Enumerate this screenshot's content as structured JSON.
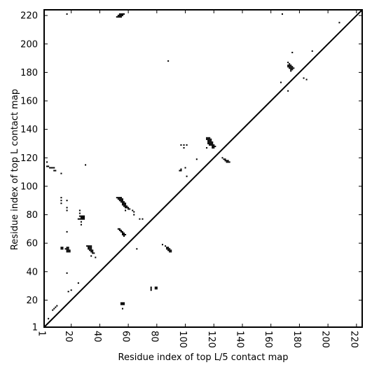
{
  "chart_data": {
    "type": "scatter",
    "title": "",
    "xlabel": "Residue index of top L/5 contact map",
    "ylabel": "Residue index of top L contact map",
    "xlim": [
      1,
      224
    ],
    "ylim": [
      1,
      224
    ],
    "x_ticks": [
      1,
      20,
      40,
      60,
      80,
      100,
      120,
      140,
      160,
      180,
      200,
      220
    ],
    "y_ticks": [
      1,
      20,
      40,
      60,
      80,
      100,
      120,
      140,
      160,
      180,
      200,
      220
    ],
    "x_tick_rotation": -90,
    "grid": false,
    "diagonal": true,
    "upper_triangle_points": [
      [
        52,
        219
      ],
      [
        53,
        219
      ],
      [
        54,
        219
      ],
      [
        55,
        219
      ],
      [
        53,
        220
      ],
      [
        54,
        220
      ],
      [
        55,
        220
      ],
      [
        56,
        220
      ],
      [
        54,
        221
      ],
      [
        55,
        221
      ],
      [
        56,
        221
      ],
      [
        57,
        221
      ],
      [
        88,
        188
      ],
      [
        108,
        119
      ],
      [
        167,
        173
      ],
      [
        172,
        167
      ],
      [
        185,
        175
      ],
      [
        183,
        176
      ],
      [
        175,
        194
      ],
      [
        189,
        195
      ],
      [
        208,
        215
      ],
      [
        168,
        221
      ],
      [
        17,
        221
      ],
      [
        126,
        120
      ],
      [
        127,
        119
      ],
      [
        128,
        119
      ],
      [
        128,
        118
      ],
      [
        129,
        118
      ],
      [
        130,
        118
      ],
      [
        129,
        117
      ],
      [
        130,
        117
      ],
      [
        131,
        117
      ]
    ],
    "lower_triangle_points": [
      [
        4,
        7
      ],
      [
        7,
        13
      ],
      [
        8,
        14
      ],
      [
        9,
        15
      ],
      [
        10,
        16
      ],
      [
        18,
        26
      ],
      [
        20,
        27
      ],
      [
        25,
        32
      ],
      [
        17,
        39
      ],
      [
        17,
        68
      ],
      [
        30,
        115
      ],
      [
        3,
        117
      ],
      [
        3,
        114
      ],
      [
        4,
        114
      ],
      [
        5,
        113
      ],
      [
        6,
        113
      ],
      [
        7,
        113
      ],
      [
        8,
        113
      ],
      [
        8,
        111
      ],
      [
        9,
        111
      ],
      [
        13,
        109
      ],
      [
        13,
        92
      ],
      [
        13,
        90
      ],
      [
        17,
        90
      ],
      [
        13,
        88
      ],
      [
        17,
        85
      ],
      [
        17,
        83
      ],
      [
        13,
        57
      ],
      [
        14,
        57
      ],
      [
        13,
        56
      ],
      [
        14,
        56
      ],
      [
        17,
        57
      ],
      [
        18,
        57
      ],
      [
        16,
        56
      ],
      [
        17,
        56
      ],
      [
        18,
        56
      ],
      [
        17,
        55
      ],
      [
        18,
        55
      ],
      [
        19,
        55
      ],
      [
        17,
        54
      ],
      [
        18,
        54
      ],
      [
        19,
        54
      ],
      [
        26,
        83
      ],
      [
        26,
        81
      ],
      [
        26,
        79
      ],
      [
        27,
        79
      ],
      [
        28,
        79
      ],
      [
        29,
        79
      ],
      [
        27,
        78
      ],
      [
        28,
        78
      ],
      [
        29,
        78
      ],
      [
        25,
        77
      ],
      [
        26,
        77
      ],
      [
        27,
        77
      ],
      [
        28,
        77
      ],
      [
        29,
        77
      ],
      [
        27,
        75
      ],
      [
        27,
        73
      ],
      [
        31,
        58
      ],
      [
        32,
        58
      ],
      [
        33,
        58
      ],
      [
        34,
        58
      ],
      [
        32,
        57
      ],
      [
        33,
        57
      ],
      [
        34,
        57
      ],
      [
        32,
        56
      ],
      [
        33,
        56
      ],
      [
        34,
        56
      ],
      [
        33,
        55
      ],
      [
        34,
        55
      ],
      [
        35,
        55
      ],
      [
        34,
        54
      ],
      [
        35,
        54
      ],
      [
        35,
        53
      ],
      [
        36,
        53
      ],
      [
        34,
        51
      ],
      [
        37,
        50
      ],
      [
        52,
        92
      ],
      [
        53,
        92
      ],
      [
        54,
        92
      ],
      [
        55,
        92
      ],
      [
        53,
        91
      ],
      [
        54,
        91
      ],
      [
        55,
        91
      ],
      [
        56,
        91
      ],
      [
        54,
        90
      ],
      [
        55,
        90
      ],
      [
        56,
        90
      ],
      [
        55,
        89
      ],
      [
        56,
        89
      ],
      [
        57,
        89
      ],
      [
        56,
        88
      ],
      [
        57,
        88
      ],
      [
        58,
        88
      ],
      [
        56,
        87
      ],
      [
        57,
        87
      ],
      [
        58,
        87
      ],
      [
        57,
        86
      ],
      [
        58,
        86
      ],
      [
        59,
        86
      ],
      [
        58,
        85
      ],
      [
        59,
        85
      ],
      [
        60,
        85
      ],
      [
        60,
        84
      ],
      [
        61,
        84
      ],
      [
        58,
        83
      ],
      [
        63,
        83
      ],
      [
        64,
        82
      ],
      [
        64,
        80
      ],
      [
        68,
        77
      ],
      [
        70,
        77
      ],
      [
        53,
        70
      ],
      [
        54,
        70
      ],
      [
        54,
        69
      ],
      [
        55,
        69
      ],
      [
        55,
        68
      ],
      [
        56,
        68
      ],
      [
        56,
        67
      ],
      [
        57,
        67
      ],
      [
        56,
        66
      ],
      [
        57,
        66
      ],
      [
        58,
        66
      ],
      [
        57,
        65
      ],
      [
        66,
        56
      ],
      [
        55,
        18
      ],
      [
        56,
        18
      ],
      [
        57,
        18
      ],
      [
        55,
        17
      ],
      [
        56,
        17
      ],
      [
        57,
        17
      ],
      [
        56,
        14
      ],
      [
        76,
        29
      ],
      [
        79,
        29
      ],
      [
        80,
        29
      ],
      [
        76,
        28
      ],
      [
        79,
        28
      ],
      [
        80,
        28
      ],
      [
        76,
        27
      ],
      [
        84,
        59
      ],
      [
        86,
        58
      ],
      [
        87,
        57
      ],
      [
        88,
        57
      ],
      [
        87,
        56
      ],
      [
        88,
        56
      ],
      [
        89,
        56
      ],
      [
        88,
        55
      ],
      [
        89,
        55
      ],
      [
        90,
        55
      ],
      [
        89,
        54
      ],
      [
        90,
        54
      ],
      [
        97,
        129
      ],
      [
        99,
        129
      ],
      [
        101,
        129
      ],
      [
        99,
        127
      ],
      [
        97,
        112
      ],
      [
        96,
        111
      ],
      [
        97,
        111
      ],
      [
        100,
        113
      ],
      [
        101,
        107
      ],
      [
        115,
        134
      ],
      [
        116,
        134
      ],
      [
        117,
        134
      ],
      [
        115,
        133
      ],
      [
        116,
        133
      ],
      [
        117,
        133
      ],
      [
        118,
        133
      ],
      [
        116,
        132
      ],
      [
        117,
        132
      ],
      [
        118,
        132
      ],
      [
        116,
        131
      ],
      [
        117,
        131
      ],
      [
        118,
        131
      ],
      [
        119,
        131
      ],
      [
        116,
        130
      ],
      [
        117,
        130
      ],
      [
        118,
        130
      ],
      [
        119,
        130
      ],
      [
        117,
        129
      ],
      [
        118,
        129
      ],
      [
        119,
        129
      ],
      [
        120,
        129
      ],
      [
        119,
        128
      ],
      [
        120,
        128
      ],
      [
        121,
        128
      ],
      [
        119,
        127
      ],
      [
        120,
        127
      ],
      [
        115,
        127
      ],
      [
        172,
        187
      ],
      [
        173,
        186
      ],
      [
        172,
        185
      ],
      [
        173,
        185
      ],
      [
        174,
        185
      ],
      [
        172,
        184
      ],
      [
        173,
        184
      ],
      [
        174,
        184
      ],
      [
        175,
        184
      ],
      [
        173,
        183
      ],
      [
        174,
        183
      ],
      [
        175,
        183
      ],
      [
        176,
        183
      ],
      [
        174,
        182
      ],
      [
        175,
        182
      ],
      [
        174,
        181
      ]
    ]
  }
}
